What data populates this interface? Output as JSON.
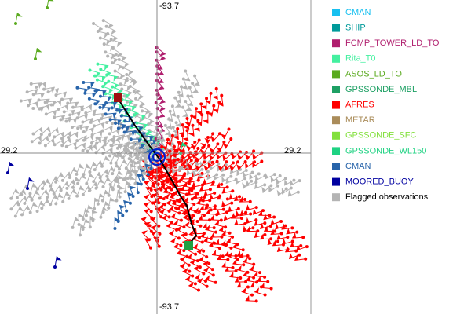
{
  "plot": {
    "axis_labels": {
      "top": "-93.7",
      "bottom": "-93.7",
      "left": "29.2",
      "right": "29.2"
    },
    "legend": [
      {
        "name": "CMAN",
        "color": "#18c0f0"
      },
      {
        "name": "SHIP",
        "color": "#009a9a"
      },
      {
        "name": "FCMP_TOWER_LD_TO",
        "color": "#b01e6e"
      },
      {
        "name": "Rita_T0",
        "color": "#44f0a0"
      },
      {
        "name": "ASOS_LD_TO",
        "color": "#5aaa1e"
      },
      {
        "name": "GPSSONDE_MBL",
        "color": "#1ea064"
      },
      {
        "name": "AFRES",
        "color": "#ff0000"
      },
      {
        "name": "METAR",
        "color": "#aa8c5a"
      },
      {
        "name": "GPSSONDE_SFC",
        "color": "#82e03c"
      },
      {
        "name": "GPSSONDE_WL150",
        "color": "#1ed282"
      },
      {
        "name": "CMAN",
        "color": "#2864aa"
      },
      {
        "name": "MOORED_BUOY",
        "color": "#0000a0"
      },
      {
        "name": "Flagged observations",
        "color": "#b4b4b4"
      }
    ]
  }
}
